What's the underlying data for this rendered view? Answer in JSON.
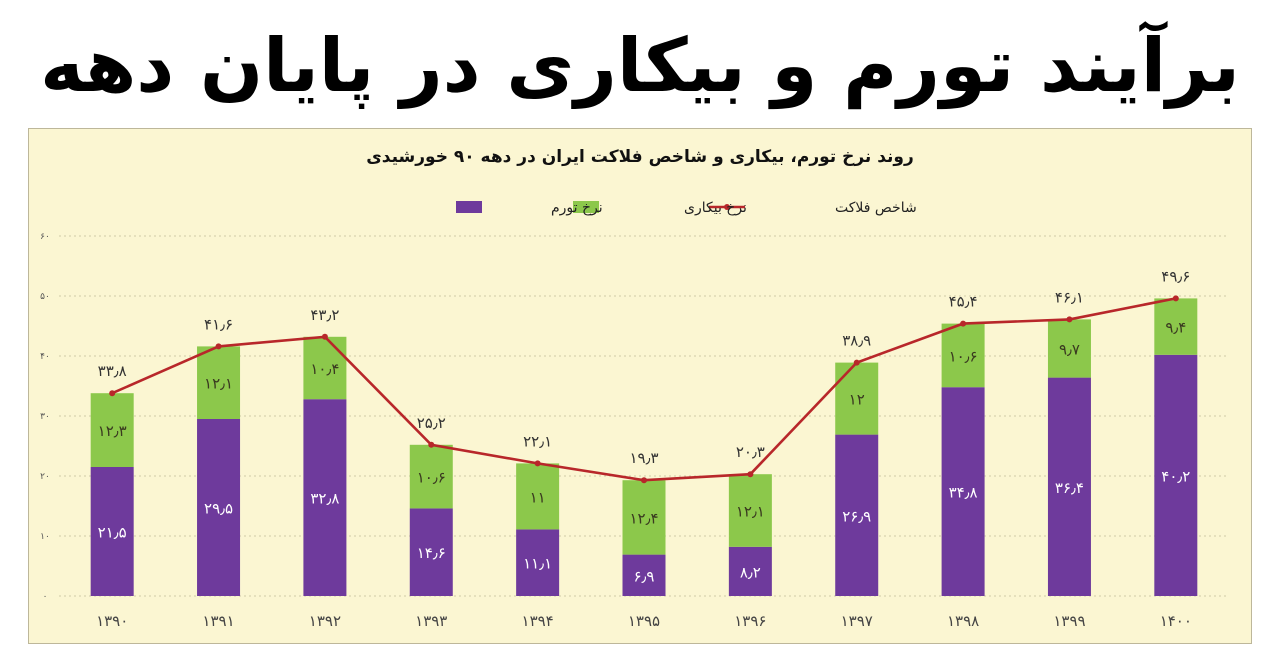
{
  "headline": "برآیند تورم و بیکاری در پایان دهه",
  "chart_data": {
    "type": "bar",
    "stacked": true,
    "title": "روند نرخ تورم، بیکاری و شاخص فلاکت ایران در دهه ۹۰ خورشیدی",
    "categories": [
      "۱۳۹۰",
      "۱۳۹۱",
      "۱۳۹۲",
      "۱۳۹۳",
      "۱۳۹۴",
      "۱۳۹۵",
      "۱۳۹۶",
      "۱۳۹۷",
      "۱۳۹۸",
      "۱۳۹۹",
      "۱۴۰۰"
    ],
    "series": [
      {
        "name": "نرخ تورم",
        "color": "#6e3a9c",
        "kind": "bar",
        "values": [
          21.5,
          29.5,
          32.8,
          14.6,
          11.1,
          6.9,
          8.2,
          26.9,
          34.8,
          36.4,
          40.2
        ],
        "labels": [
          "۲۱٫۵",
          "۲۹٫۵",
          "۳۲٫۸",
          "۱۴٫۶",
          "۱۱٫۱",
          "۶٫۹",
          "۸٫۲",
          "۲۶٫۹",
          "۳۴٫۸",
          "۳۶٫۴",
          "۴۰٫۲"
        ]
      },
      {
        "name": "نرخ بیکاری",
        "color": "#8cc84b",
        "kind": "bar",
        "values": [
          12.3,
          12.1,
          10.4,
          10.6,
          11,
          12.4,
          12.1,
          12,
          10.6,
          9.7,
          9.4
        ],
        "labels": [
          "۱۲٫۳",
          "۱۲٫۱",
          "۱۰٫۴",
          "۱۰٫۶",
          "۱۱",
          "۱۲٫۴",
          "۱۲٫۱",
          "۱۲",
          "۱۰٫۶",
          "۹٫۷",
          "۹٫۴"
        ]
      },
      {
        "name": "شاخص فلاکت",
        "color": "#b8272a",
        "kind": "line",
        "values": [
          33.8,
          41.6,
          43.2,
          25.2,
          22.1,
          19.3,
          20.3,
          38.9,
          45.4,
          46.1,
          49.6
        ],
        "labels": [
          "۳۳٫۸",
          "۴۱٫۶",
          "۴۳٫۲",
          "۲۵٫۲",
          "۲۲٫۱",
          "۱۹٫۳",
          "۲۰٫۳",
          "۳۸٫۹",
          "۴۵٫۴",
          "۴۶٫۱",
          "۴۹٫۶"
        ]
      }
    ],
    "ylim": [
      0,
      60
    ],
    "yticks": [
      0,
      10,
      20,
      30,
      40,
      50,
      60
    ],
    "ytick_labels": [
      "۰",
      "۱۰",
      "۲۰",
      "۳۰",
      "۴۰",
      "۵۰",
      "۶۰"
    ],
    "grid": true,
    "legend_position": "top-center"
  }
}
